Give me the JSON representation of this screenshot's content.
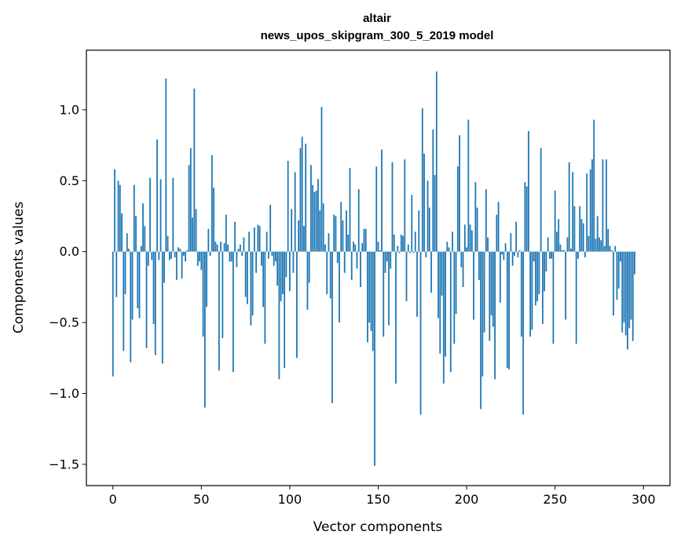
{
  "chart_data": {
    "type": "bar",
    "title": "altair",
    "subtitle": "news_upos_skipgram_300_5_2019 model",
    "xlabel": "Vector components",
    "ylabel": "Components values",
    "xlim": [
      -15,
      315
    ],
    "ylim": [
      -1.65,
      1.42
    ],
    "xticks": [
      0,
      50,
      100,
      150,
      200,
      250,
      300
    ],
    "yticks": [
      -1.5,
      -1.0,
      -0.5,
      0.0,
      0.5,
      1.0
    ],
    "ytick_labels": [
      "−1.5",
      "−1.0",
      "−0.5",
      "0.0",
      "0.5",
      "1.0"
    ],
    "bar_color": "#1f77b4",
    "grid": false,
    "values": [
      -0.88,
      0.58,
      -0.32,
      0.5,
      0.47,
      0.27,
      -0.7,
      -0.3,
      0.13,
      0.02,
      -0.78,
      -0.48,
      0.47,
      0.25,
      -0.4,
      -0.47,
      0.04,
      0.34,
      0.18,
      -0.68,
      -0.1,
      0.52,
      -0.06,
      -0.51,
      -0.73,
      0.79,
      -0.06,
      0.51,
      -0.79,
      -0.22,
      1.22,
      0.11,
      -0.06,
      -0.05,
      0.52,
      -0.04,
      -0.2,
      0.03,
      0.02,
      -0.19,
      -0.03,
      -0.07,
      0.01,
      0.61,
      0.73,
      0.24,
      1.15,
      0.3,
      -0.1,
      -0.07,
      -0.13,
      -0.6,
      -1.1,
      -0.39,
      0.16,
      -0.03,
      0.68,
      0.45,
      0.07,
      0.05,
      -0.84,
      0.07,
      -0.61,
      0.06,
      0.26,
      0.05,
      -0.07,
      -0.07,
      -0.85,
      0.21,
      -0.11,
      0.02,
      0.05,
      -0.03,
      0.1,
      -0.32,
      -0.37,
      0.14,
      -0.52,
      -0.45,
      0.17,
      -0.15,
      0.19,
      0.18,
      -0.1,
      -0.39,
      -0.65,
      0.14,
      -0.05,
      0.33,
      -0.03,
      -0.1,
      -0.07,
      -0.24,
      -0.9,
      -0.35,
      -0.3,
      -0.82,
      -0.18,
      0.64,
      -0.28,
      0.3,
      -0.15,
      0.56,
      -0.75,
      0.22,
      0.73,
      0.81,
      0.18,
      0.76,
      -0.41,
      -0.22,
      0.61,
      0.47,
      0.42,
      0.43,
      0.51,
      0.29,
      1.02,
      0.34,
      0.05,
      -0.3,
      0.13,
      -0.33,
      -1.07,
      0.26,
      0.25,
      -0.08,
      -0.5,
      0.35,
      0.22,
      -0.15,
      0.29,
      0.12,
      0.59,
      -0.2,
      0.07,
      0.05,
      -0.12,
      0.44,
      -0.25,
      0.06,
      0.16,
      0.16,
      -0.64,
      -0.5,
      -0.56,
      -0.7,
      -1.51,
      0.6,
      0.07,
      0.01,
      0.72,
      -0.6,
      -0.15,
      -0.07,
      -0.52,
      -0.12,
      0.63,
      0.12,
      -0.93,
      0.04,
      -0.01,
      0.12,
      0.11,
      0.65,
      -0.35,
      0.05,
      -0.01,
      0.4,
      -0.01,
      0.14,
      -0.46,
      0.29,
      -1.15,
      1.01,
      0.69,
      -0.04,
      0.5,
      0.31,
      -0.29,
      0.86,
      0.54,
      1.27,
      -0.47,
      -0.72,
      -0.31,
      -0.93,
      -0.74,
      0.07,
      0.03,
      -0.85,
      0.14,
      -0.65,
      -0.44,
      0.6,
      0.82,
      -0.11,
      -0.25,
      0.19,
      0.03,
      0.93,
      0.19,
      0.15,
      -0.48,
      0.49,
      0.31,
      -0.2,
      -1.11,
      -0.88,
      -0.57,
      0.44,
      0.1,
      -0.63,
      -0.45,
      -0.53,
      -0.9,
      0.26,
      0.35,
      -0.36,
      -0.02,
      -0.06,
      0.06,
      -0.82,
      -0.83,
      0.13,
      -0.1,
      -0.03,
      0.21,
      -0.04,
      0.01,
      -0.6,
      -1.15,
      0.49,
      0.46,
      0.85,
      -0.6,
      -0.55,
      -0.07,
      -0.38,
      -0.35,
      -0.3,
      0.73,
      -0.51,
      -0.28,
      -0.14,
      0.1,
      -0.05,
      -0.05,
      -0.65,
      0.43,
      0.14,
      0.23,
      0.05,
      0.01,
      0.01,
      -0.48,
      0.1,
      0.63,
      0.02,
      0.56,
      0.32,
      -0.65,
      -0.05,
      0.32,
      0.23,
      0.2,
      -0.04,
      0.55,
      0.11,
      0.58,
      0.65,
      0.93,
      0.09,
      0.25,
      0.1,
      0.08,
      0.65,
      0.04,
      0.65,
      0.16,
      0.04,
      0.01,
      -0.45,
      0.04,
      -0.34,
      -0.26,
      -0.07,
      -0.57,
      -0.5,
      -0.59,
      -0.69,
      -0.54,
      -0.48,
      -0.63,
      -0.16
    ]
  }
}
